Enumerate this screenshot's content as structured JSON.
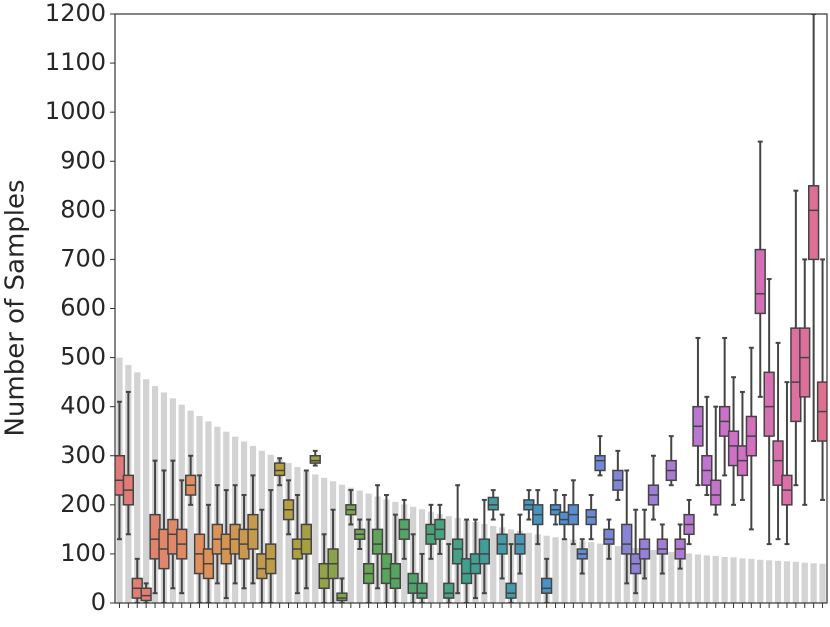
{
  "chart_data": {
    "type": "box",
    "y_label": "Number of Samples",
    "ylim": [
      0,
      1200
    ],
    "yticks": [
      0,
      100,
      200,
      300,
      400,
      500,
      600,
      700,
      800,
      900,
      1000,
      1100,
      1200
    ],
    "categories": [
      null,
      null,
      null,
      null,
      null,
      null,
      null,
      null,
      null,
      null,
      null,
      null,
      null,
      null,
      null,
      null,
      null,
      null,
      null,
      null,
      null,
      null,
      null,
      null,
      null,
      null,
      null,
      null,
      null,
      null,
      null,
      null,
      null,
      null,
      null,
      null,
      null,
      null,
      null,
      null,
      null,
      null,
      null,
      null,
      null,
      null,
      null,
      null,
      null,
      null,
      null,
      null,
      null,
      null,
      null,
      null,
      null,
      null,
      null,
      null,
      null,
      null,
      null,
      null,
      null,
      null,
      null,
      null,
      null,
      null,
      null,
      null,
      null,
      null,
      null,
      null,
      null,
      null,
      null,
      null
    ],
    "bar_color": "#d3d3d3",
    "box_edge_color": "#444444",
    "palette": [
      "#e07a7a",
      "#e0915a",
      "#b0a040",
      "#5aa55a",
      "#40a090",
      "#4a90d0",
      "#9a80d8",
      "#d070c8",
      "#e07090"
    ],
    "bars": [
      500,
      485,
      470,
      456,
      442,
      429,
      417,
      404,
      392,
      381,
      370,
      359,
      349,
      339,
      329,
      320,
      310,
      302,
      293,
      285,
      277,
      270,
      262,
      255,
      248,
      241,
      235,
      229,
      223,
      217,
      211,
      206,
      201,
      196,
      191,
      186,
      181,
      177,
      173,
      169,
      165,
      161,
      157,
      154,
      150,
      147,
      143,
      140,
      137,
      134,
      132,
      129,
      126,
      124,
      121,
      119,
      116,
      114,
      112,
      110,
      108,
      106,
      104,
      102,
      101,
      99,
      97,
      96,
      94,
      93,
      91,
      90,
      88,
      87,
      86,
      85,
      84,
      82,
      81,
      80
    ],
    "whislo": [
      130,
      140,
      0,
      0,
      20,
      0,
      30,
      20,
      200,
      0,
      0,
      40,
      10,
      40,
      30,
      40,
      0,
      0,
      240,
      140,
      20,
      30,
      280,
      0,
      0,
      0,
      160,
      110,
      0,
      30,
      0,
      0,
      90,
      0,
      0,
      90,
      100,
      0,
      20,
      0,
      10,
      20,
      170,
      50,
      0,
      60,
      170,
      120,
      0,
      160,
      130,
      120,
      60,
      130,
      260,
      90,
      210,
      40,
      20,
      50,
      170,
      60,
      240,
      70,
      120,
      240,
      220,
      180,
      260,
      200,
      210,
      150,
      420,
      120,
      130,
      120,
      240,
      200,
      330,
      210
    ],
    "q1": [
      220,
      200,
      10,
      5,
      90,
      70,
      100,
      90,
      220,
      60,
      50,
      100,
      80,
      100,
      90,
      110,
      50,
      60,
      260,
      170,
      90,
      100,
      285,
      30,
      50,
      5,
      180,
      130,
      40,
      100,
      40,
      30,
      130,
      20,
      10,
      120,
      130,
      10,
      80,
      40,
      60,
      80,
      190,
      100,
      10,
      100,
      190,
      160,
      20,
      180,
      160,
      160,
      90,
      160,
      270,
      120,
      230,
      100,
      60,
      90,
      200,
      100,
      250,
      90,
      140,
      320,
      240,
      200,
      340,
      280,
      260,
      300,
      590,
      340,
      240,
      200,
      370,
      420,
      700,
      330
    ],
    "med": [
      250,
      230,
      30,
      15,
      130,
      110,
      140,
      120,
      240,
      100,
      80,
      130,
      110,
      130,
      120,
      150,
      70,
      90,
      270,
      190,
      110,
      130,
      290,
      50,
      80,
      10,
      190,
      140,
      60,
      120,
      70,
      50,
      150,
      40,
      20,
      140,
      150,
      20,
      110,
      60,
      80,
      100,
      200,
      120,
      20,
      120,
      200,
      180,
      30,
      190,
      170,
      180,
      100,
      175,
      290,
      130,
      250,
      120,
      80,
      110,
      220,
      110,
      270,
      110,
      160,
      360,
      270,
      220,
      370,
      320,
      290,
      340,
      630,
      400,
      290,
      230,
      450,
      500,
      800,
      390
    ],
    "q3": [
      300,
      260,
      50,
      30,
      180,
      150,
      170,
      150,
      260,
      140,
      110,
      160,
      140,
      160,
      150,
      180,
      100,
      120,
      285,
      210,
      130,
      160,
      300,
      80,
      110,
      20,
      200,
      150,
      80,
      150,
      100,
      80,
      170,
      60,
      40,
      160,
      170,
      40,
      130,
      90,
      100,
      130,
      215,
      140,
      40,
      140,
      210,
      200,
      50,
      200,
      185,
      200,
      110,
      190,
      300,
      150,
      270,
      160,
      100,
      130,
      240,
      130,
      290,
      130,
      180,
      400,
      300,
      250,
      400,
      350,
      320,
      380,
      720,
      470,
      330,
      260,
      560,
      560,
      850,
      450
    ],
    "whishi": [
      410,
      430,
      90,
      40,
      290,
      270,
      290,
      250,
      300,
      260,
      200,
      240,
      230,
      240,
      220,
      260,
      190,
      230,
      295,
      250,
      220,
      270,
      310,
      140,
      190,
      50,
      230,
      170,
      170,
      240,
      220,
      180,
      210,
      140,
      100,
      200,
      200,
      120,
      240,
      170,
      170,
      210,
      230,
      180,
      120,
      180,
      230,
      230,
      90,
      230,
      220,
      250,
      130,
      220,
      340,
      170,
      310,
      270,
      190,
      190,
      300,
      160,
      340,
      160,
      210,
      540,
      420,
      400,
      540,
      460,
      430,
      520,
      940,
      660,
      530,
      450,
      840,
      700,
      1200,
      700
    ]
  }
}
